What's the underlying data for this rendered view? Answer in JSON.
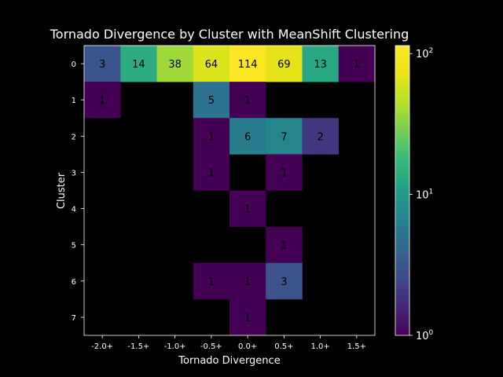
{
  "chart_data": {
    "type": "heatmap",
    "title": "Tornado Divergence by Cluster with MeanShift Clustering",
    "xlabel": "Tornado Divergence",
    "ylabel": "Cluster",
    "x_categories": [
      "-2.0+",
      "-1.5+",
      "-1.0+",
      "-0.5+",
      "0.0+",
      "0.5+",
      "1.0+",
      "1.5+"
    ],
    "y_categories": [
      "0",
      "1",
      "2",
      "3",
      "4",
      "5",
      "6",
      "7"
    ],
    "values": [
      [
        3,
        14,
        38,
        64,
        114,
        69,
        13,
        1
      ],
      [
        1,
        0,
        0,
        5,
        1,
        0,
        0,
        0
      ],
      [
        0,
        0,
        0,
        1,
        6,
        7,
        2,
        0
      ],
      [
        0,
        0,
        0,
        1,
        0,
        1,
        0,
        0
      ],
      [
        0,
        0,
        0,
        0,
        1,
        0,
        0,
        0
      ],
      [
        0,
        0,
        0,
        0,
        0,
        1,
        0,
        0
      ],
      [
        0,
        0,
        0,
        1,
        1,
        3,
        0,
        0
      ],
      [
        0,
        0,
        0,
        0,
        1,
        0,
        0,
        0
      ]
    ],
    "color_scale": "log",
    "colormap": "viridis",
    "color_range": [
      1,
      114
    ],
    "colorbar_ticks": [
      {
        "value": 1,
        "base": "10",
        "exp": "0"
      },
      {
        "value": 10,
        "base": "10",
        "exp": "1"
      },
      {
        "value": 100,
        "base": "10",
        "exp": "2"
      }
    ],
    "background_color": "#000000"
  }
}
